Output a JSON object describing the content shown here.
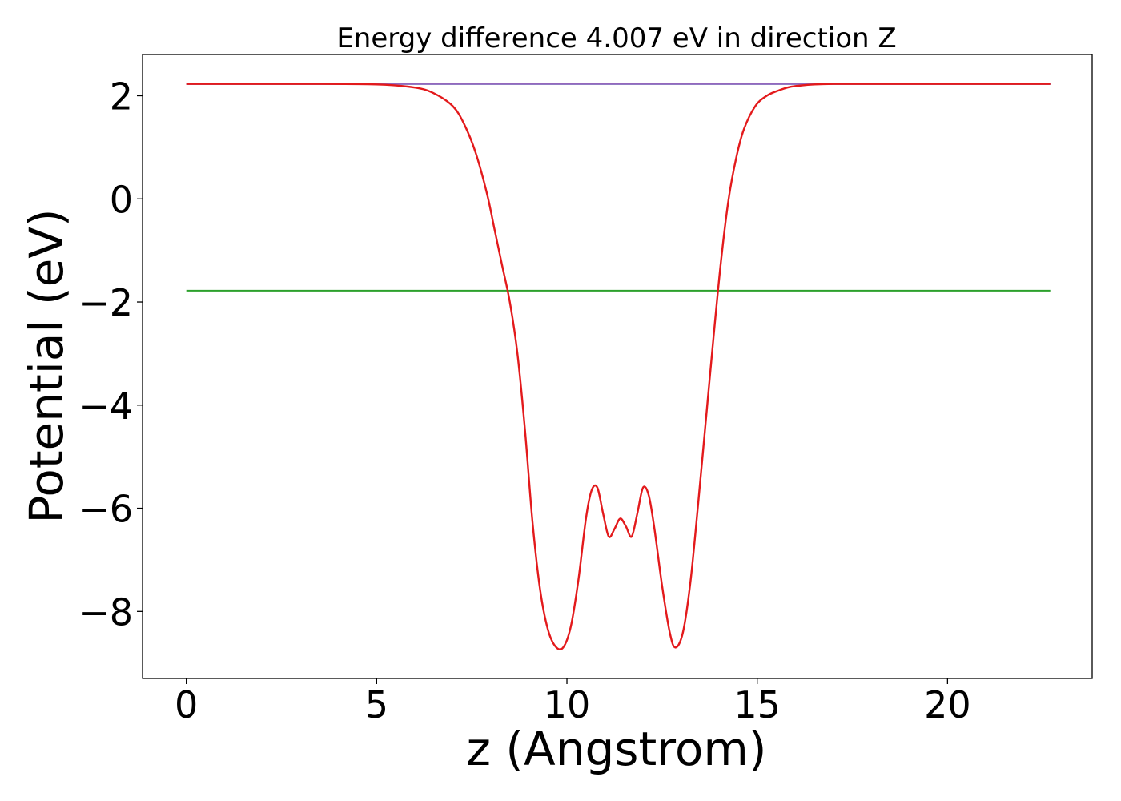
{
  "chart_data": {
    "type": "line",
    "title": "Energy difference 4.007 eV in direction Z",
    "xlabel": "z (Angstrom)",
    "ylabel": "Potential (eV)",
    "xlim": [
      -1.15,
      23.8
    ],
    "ylim": [
      -9.3,
      2.8
    ],
    "xticks": [
      0,
      5,
      10,
      15,
      20
    ],
    "xtick_labels": [
      "0",
      "5",
      "10",
      "15",
      "20"
    ],
    "yticks": [
      2,
      0,
      -2,
      -4,
      -6,
      -8
    ],
    "ytick_labels": [
      "2",
      "0",
      "−2",
      "−4",
      "−6",
      "−8"
    ],
    "grid": false,
    "legend": "none",
    "series": [
      {
        "color": "#1f77b4",
        "x": [
          0,
          22.7
        ],
        "y": [
          2.23,
          2.23
        ]
      },
      {
        "color": "#2ca02c",
        "x": [
          0,
          22.7
        ],
        "y": [
          -1.78,
          -1.78
        ]
      },
      {
        "color": "#9467bd",
        "x": [
          0,
          22.7
        ],
        "y": [
          2.23,
          2.23
        ]
      },
      {
        "color": "#e31a1c",
        "x": [
          0,
          3.0,
          5.0,
          6.0,
          6.5,
          7.0,
          7.3,
          7.6,
          7.9,
          8.1,
          8.3,
          8.5,
          8.7,
          8.9,
          9.1,
          9.3,
          9.5,
          9.7,
          9.9,
          10.1,
          10.3,
          10.5,
          10.65,
          10.8,
          10.95,
          11.1,
          11.25,
          11.4,
          11.55,
          11.7,
          11.85,
          12.0,
          12.15,
          12.3,
          12.5,
          12.7,
          12.85,
          13.05,
          13.25,
          13.45,
          13.65,
          13.85,
          14.05,
          14.25,
          14.45,
          14.65,
          14.95,
          15.25,
          15.55,
          15.85,
          16.15,
          16.5,
          17.0,
          18.0,
          20.0,
          22.7
        ],
        "y": [
          2.23,
          2.23,
          2.22,
          2.16,
          2.05,
          1.8,
          1.45,
          0.9,
          0.1,
          -0.6,
          -1.3,
          -2.0,
          -3.0,
          -4.5,
          -6.3,
          -7.6,
          -8.35,
          -8.68,
          -8.7,
          -8.3,
          -7.4,
          -6.2,
          -5.65,
          -5.6,
          -6.1,
          -6.55,
          -6.4,
          -6.2,
          -6.35,
          -6.55,
          -6.1,
          -5.6,
          -5.75,
          -6.4,
          -7.5,
          -8.4,
          -8.7,
          -8.4,
          -7.4,
          -5.9,
          -4.3,
          -2.7,
          -1.2,
          0.0,
          0.8,
          1.35,
          1.8,
          2.0,
          2.1,
          2.17,
          2.2,
          2.22,
          2.23,
          2.23,
          2.23,
          2.23
        ]
      }
    ]
  }
}
